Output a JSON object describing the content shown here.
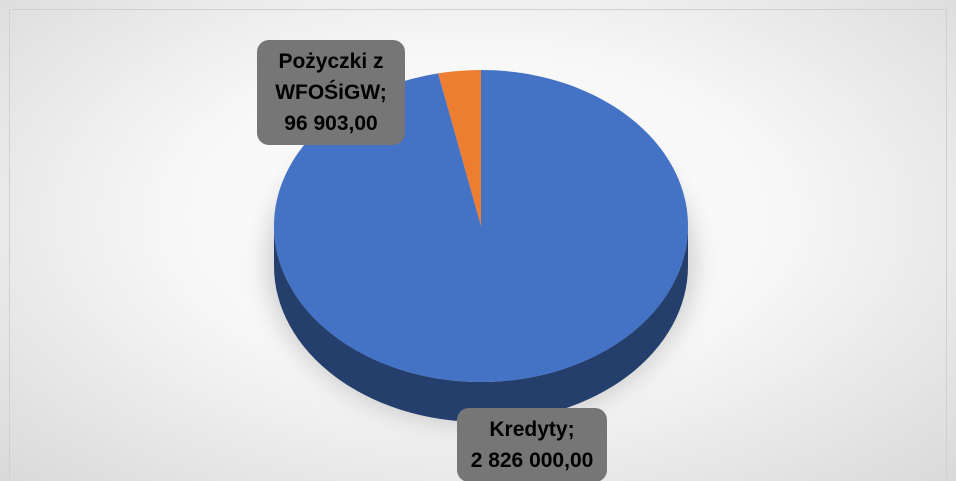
{
  "chart_data": {
    "type": "pie",
    "categories": [
      "Kredyty",
      "Pożyczki z WFOŚiGW"
    ],
    "values": [
      2826000,
      96903
    ],
    "value_labels": [
      "2 826 000,00",
      "96 903,00"
    ],
    "label_separator": ";",
    "colors": [
      "#4472c4",
      "#ed7d31"
    ]
  }
}
